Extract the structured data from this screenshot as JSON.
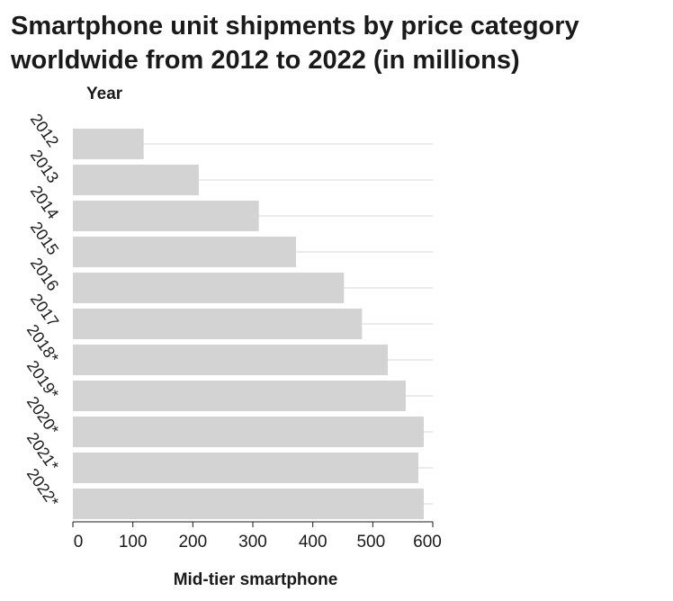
{
  "chart_data": {
    "type": "bar",
    "orientation": "horizontal",
    "title": "Smartphone unit shipments by price category worldwide from 2012 to 2022 (in millions)",
    "xlabel": "Mid-tier smartphone",
    "ylabel": "Year",
    "categories": [
      "2012",
      "2013",
      "2014",
      "2015",
      "2016",
      "2017",
      "2018*",
      "2019*",
      "2020*",
      "2021*",
      "2022*"
    ],
    "values": [
      118,
      210,
      310,
      372,
      452,
      482,
      525,
      555,
      585,
      576,
      585
    ],
    "xlim": [
      0,
      600
    ],
    "xticks": [
      "0",
      "100",
      "200",
      "300",
      "400",
      "500",
      "600"
    ],
    "grid": "vertical-major-only-behind-bars",
    "bar_color": "#d3d3d3",
    "grid_color": "#d9d9d9"
  }
}
